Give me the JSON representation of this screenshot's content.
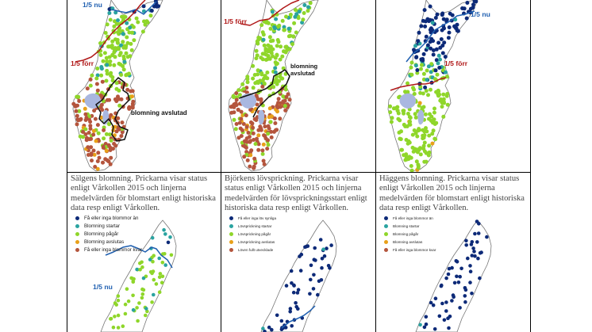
{
  "colors": {
    "dark_blue": "#0d2a78",
    "teal": "#2aa3a0",
    "light_green": "#8fd62a",
    "orange": "#e8a019",
    "brick": "#b4553d",
    "line_blue": "#1f5fb0",
    "line_red": "#b01818",
    "line_black": "#111111",
    "lake": "#a9b7e0",
    "border": "#777777"
  },
  "top_maps": [
    {
      "labels": [
        {
          "text": "1/5 nu",
          "color": "#1f5fb0"
        },
        {
          "text": "1/5 förr",
          "color": "#b01818"
        },
        {
          "text": "blomning avslutad",
          "color": "#111111"
        }
      ]
    },
    {
      "labels": [
        {
          "text": "1/5 förr",
          "color": "#b01818"
        },
        {
          "text": "blomning avslutad",
          "color": "#111111"
        }
      ]
    },
    {
      "labels": [
        {
          "text": "1/5 nu",
          "color": "#1f5fb0"
        },
        {
          "text": "1/5 förr",
          "color": "#b01818"
        }
      ]
    }
  ],
  "bottom_cells": [
    {
      "caption": "Sälgens blomning. Prickarna visar status enligt Vårkollen 2015 och linjerna medelvärden för blomstart enligt historiska data resp enligt Vårkollen.",
      "legend": [
        {
          "label": "Få eller inga blommor än",
          "color": "#0d2a78"
        },
        {
          "label": "Blomning startar",
          "color": "#2aa3a0"
        },
        {
          "label": "Blomning pågår",
          "color": "#8fd62a"
        },
        {
          "label": "Blomning avslutas",
          "color": "#e8a019"
        },
        {
          "label": "Få eller inga blommor kvar",
          "color": "#b4553d"
        }
      ],
      "map_label": {
        "text": "1/5 nu",
        "color": "#1f5fb0"
      }
    },
    {
      "caption": "Björkens lövsprickning. Prickarna visar status enligt Vårkollen 2015 och linjerna medelvärden för lövsprickningsstart enligt historiska data resp enligt Vårkollen.",
      "legend": [
        {
          "label": "Få eller inga löv synliga",
          "color": "#0d2a78"
        },
        {
          "label": "Lövsprickning startar",
          "color": "#2aa3a0"
        },
        {
          "label": "Lövsprickning pågår",
          "color": "#8fd62a"
        },
        {
          "label": "Lövsprickning avslutas",
          "color": "#e8a019"
        },
        {
          "label": "Löven fullt utvecklade",
          "color": "#b4553d"
        }
      ]
    },
    {
      "caption": "Häggens blomning. Prickarna visar status enligt Vårkollen 2015 och linjerna medelvärden för blomstart enligt historiska data resp enligt Vårkollen.",
      "legend": [
        {
          "label": "Få eller inga blommor än",
          "color": "#0d2a78"
        },
        {
          "label": "Blomning startar",
          "color": "#2aa3a0"
        },
        {
          "label": "Blomning pågår",
          "color": "#8fd62a"
        },
        {
          "label": "Blomning avslutas",
          "color": "#e8a019"
        },
        {
          "label": "Få eller inga blommor kvar",
          "color": "#b4553d"
        }
      ]
    }
  ]
}
